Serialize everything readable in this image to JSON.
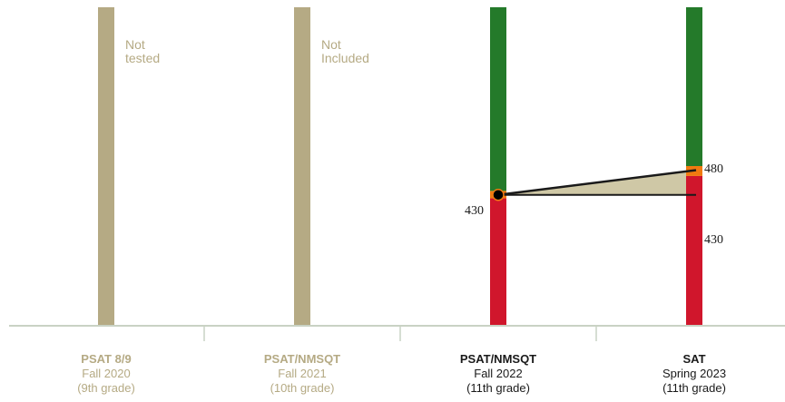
{
  "colors": {
    "tan": "#b5aa84",
    "green": "#247a2a",
    "orange": "#f07a10",
    "red": "#d0162c",
    "dark": "#1a1a1a",
    "projection_fill": "#cfc8a6",
    "axis": "#c9d2c4"
  },
  "chart_data": {
    "type": "bar",
    "title": "",
    "xlabel": "",
    "ylabel": "",
    "categories": [
      {
        "test": "PSAT 8/9",
        "date": "Fall 2020",
        "grade": "(9th grade)",
        "status": "inactive",
        "note": [
          "Not",
          "tested"
        ]
      },
      {
        "test": "PSAT/NMSQT",
        "date": "Fall 2021",
        "grade": "(10th grade)",
        "status": "inactive",
        "note": [
          "Not",
          "Included"
        ]
      },
      {
        "test": "PSAT/NMSQT",
        "date": "Fall 2022",
        "grade": "(11th grade)",
        "status": "active",
        "note": []
      },
      {
        "test": "SAT",
        "date": "Spring 2023",
        "grade": "(11th grade)",
        "status": "active",
        "note": []
      }
    ],
    "ylim": [
      160,
      800
    ],
    "bands": [
      {
        "name": "red",
        "from": 160,
        "to": 415
      },
      {
        "name": "orange",
        "from": 415,
        "to": 430
      },
      {
        "name": "green",
        "from": 430,
        "to": 800
      }
    ],
    "sat_bands": [
      {
        "name": "red",
        "from": 160,
        "to": 460
      },
      {
        "name": "orange",
        "from": 460,
        "to": 480
      },
      {
        "name": "green",
        "from": 480,
        "to": 800
      }
    ],
    "score": {
      "category_index": 2,
      "value": 422,
      "label": "430"
    },
    "projection": {
      "from_index": 2,
      "to_index": 3,
      "from_value": 422,
      "to_low": 422,
      "to_high": 470,
      "label_high": "480",
      "label_low": "430"
    }
  }
}
